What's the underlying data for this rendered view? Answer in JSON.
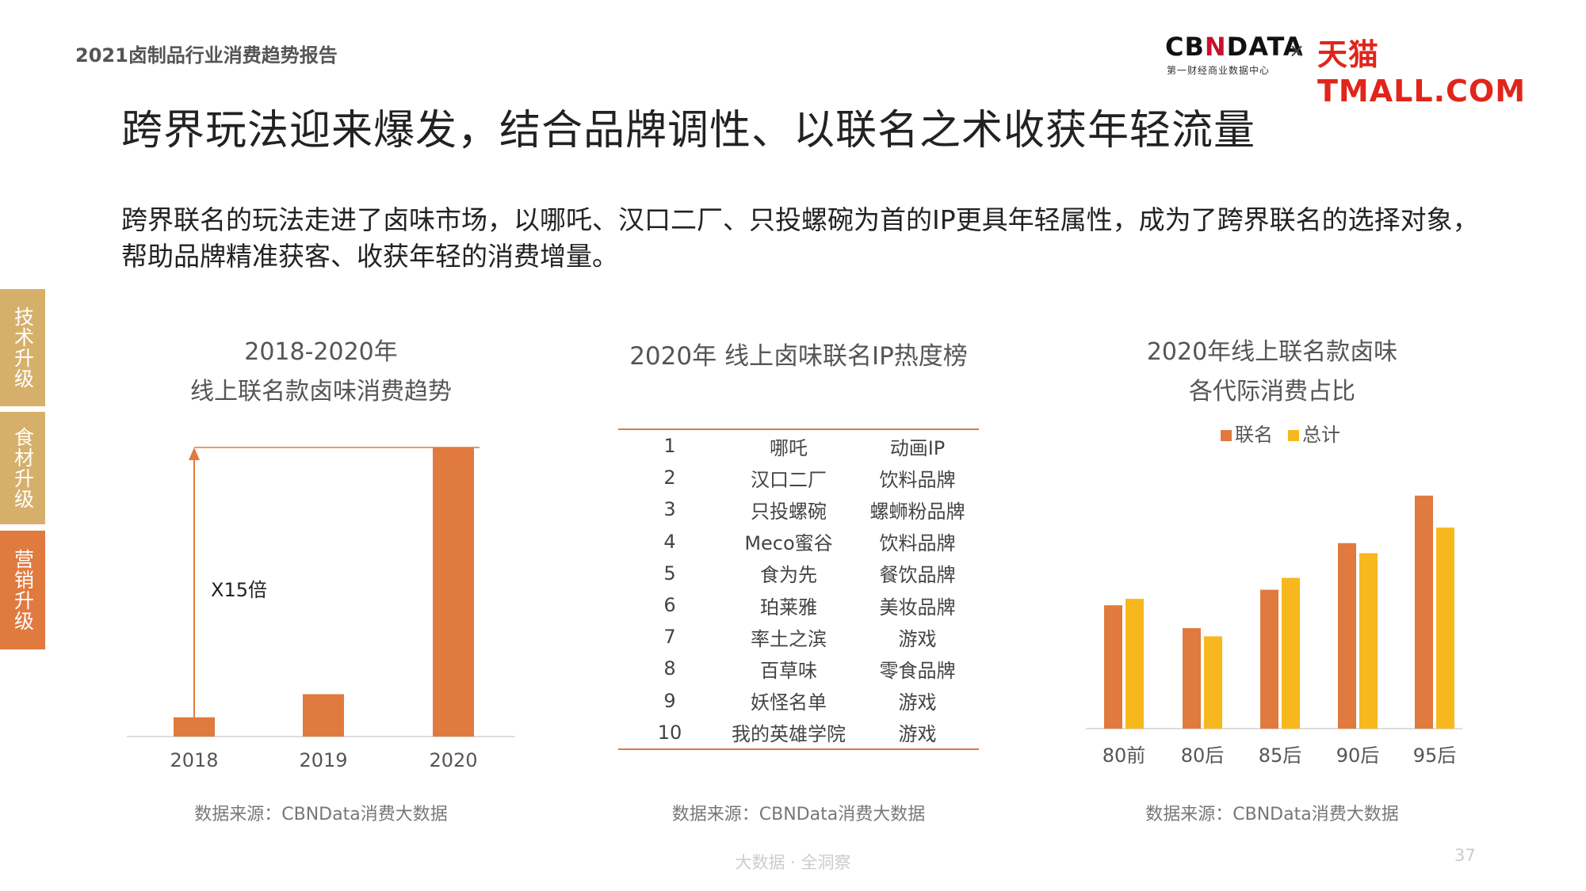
{
  "report_title": "2021卤制品行业消费趋势报告",
  "logo": {
    "cbn_a": "CB",
    "cbn_n": "N",
    "cbn_b": "DATA",
    "cbn_sub": "第一财经商业数据中心",
    "times": "×",
    "tmall": "天猫TMALL.COM"
  },
  "main_title": "跨界玩法迎来爆发，结合品牌调性、以联名之术收获年轻流量",
  "description": "跨界联名的玩法走进了卤味市场，以哪吒、汉口二厂、只投螺碗为首的IP更具年轻属性，成为了跨界联名的选择对象，帮助品牌精准获客、收获年轻的消费增量。",
  "side_tabs": [
    "技术升级",
    "食材升级",
    "营销升级"
  ],
  "colors": {
    "orange": "#e07a3f",
    "yellow": "#f6b81d",
    "gold": "#d6b06b"
  },
  "chart_data": [
    {
      "type": "bar",
      "title_line1": "2018-2020年",
      "title_line2": "线上联名款卤味消费趋势",
      "categories": [
        "2018",
        "2019",
        "2020"
      ],
      "values": [
        1,
        2.2,
        15
      ],
      "annotation": "X15倍",
      "source": "数据来源：CBNData消费大数据"
    },
    {
      "type": "table",
      "title": "2020年 线上卤味联名IP热度榜",
      "rows": [
        [
          "1",
          "哪吒",
          "动画IP"
        ],
        [
          "2",
          "汉口二厂",
          "饮料品牌"
        ],
        [
          "3",
          "只投螺碗",
          "螺蛳粉品牌"
        ],
        [
          "4",
          "Meco蜜谷",
          "饮料品牌"
        ],
        [
          "5",
          "食为先",
          "餐饮品牌"
        ],
        [
          "6",
          "珀莱雅",
          "美妆品牌"
        ],
        [
          "7",
          "率土之滨",
          "游戏"
        ],
        [
          "8",
          "百草味",
          "零食品牌"
        ],
        [
          "9",
          "妖怪名单",
          "游戏"
        ],
        [
          "10",
          "我的英雄学院",
          "游戏"
        ]
      ],
      "source": "数据来源：CBNData消费大数据"
    },
    {
      "type": "bar",
      "title_line1": "2020年线上联名款卤味",
      "title_line2": "各代际消费占比",
      "categories": [
        "80前",
        "80后",
        "85后",
        "90后",
        "95后"
      ],
      "series": [
        {
          "name": "联名",
          "values": [
            13.5,
            11,
            15.2,
            20.3,
            25.5
          ]
        },
        {
          "name": "总计",
          "values": [
            14.2,
            10.1,
            16.5,
            19.2,
            22.0
          ]
        }
      ],
      "source": "数据来源：CBNData消费大数据"
    }
  ],
  "footer": "大数据 · 全洞察",
  "page_number": "37"
}
